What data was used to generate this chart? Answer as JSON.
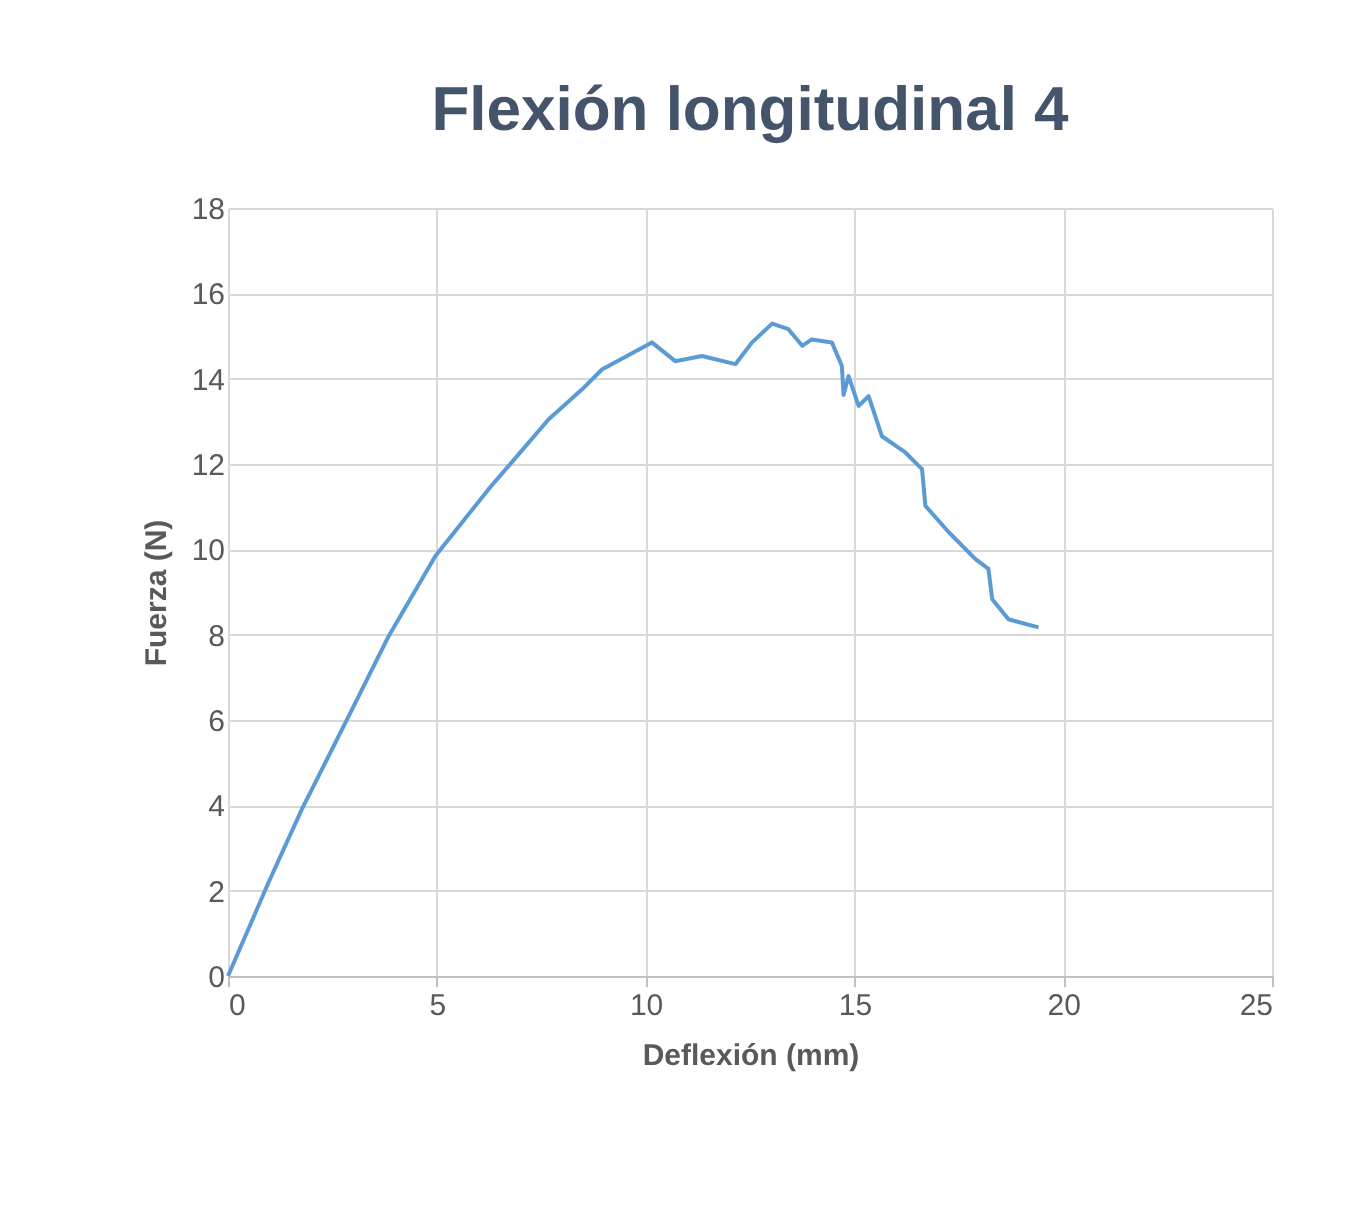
{
  "chart_data": {
    "type": "line",
    "title": "Flexión longitudinal 4",
    "xlabel": "Deflexión (mm)",
    "ylabel": "Fuerza (N)",
    "x": [
      0,
      0.97,
      1.77,
      2.89,
      3.85,
      4.97,
      6.24,
      7.68,
      8.48,
      8.96,
      9.12,
      10.15,
      10.71,
      11.35,
      12.15,
      12.55,
      13.03,
      13.42,
      13.75,
      13.98,
      14.46,
      14.7,
      14.74,
      14.86,
      15.1,
      15.34,
      15.66,
      16.22,
      16.62,
      16.7,
      17.26,
      17.9,
      18.21,
      18.3,
      18.69,
      19.41
    ],
    "series": [
      {
        "color": "#5b9bd5",
        "values": [
          0,
          2.19,
          3.91,
          6.09,
          7.97,
          9.85,
          11.41,
          13.05,
          13.75,
          14.22,
          14.3,
          14.85,
          14.41,
          14.53,
          14.34,
          14.85,
          15.29,
          15.16,
          14.77,
          14.92,
          14.85,
          14.3,
          13.62,
          14.06,
          13.36,
          13.59,
          12.65,
          12.27,
          11.88,
          11.02,
          10.4,
          9.77,
          9.54,
          8.83,
          8.36,
          8.17
        ]
      }
    ],
    "xlim": [
      0,
      25
    ],
    "xticks": [
      0,
      5,
      10,
      15,
      20,
      25
    ],
    "ylim": [
      0,
      18
    ],
    "yticks": [
      0,
      2,
      4,
      6,
      8,
      10,
      12,
      14,
      16,
      18
    ],
    "grid": true,
    "marker": "none",
    "line_style": "solid"
  }
}
